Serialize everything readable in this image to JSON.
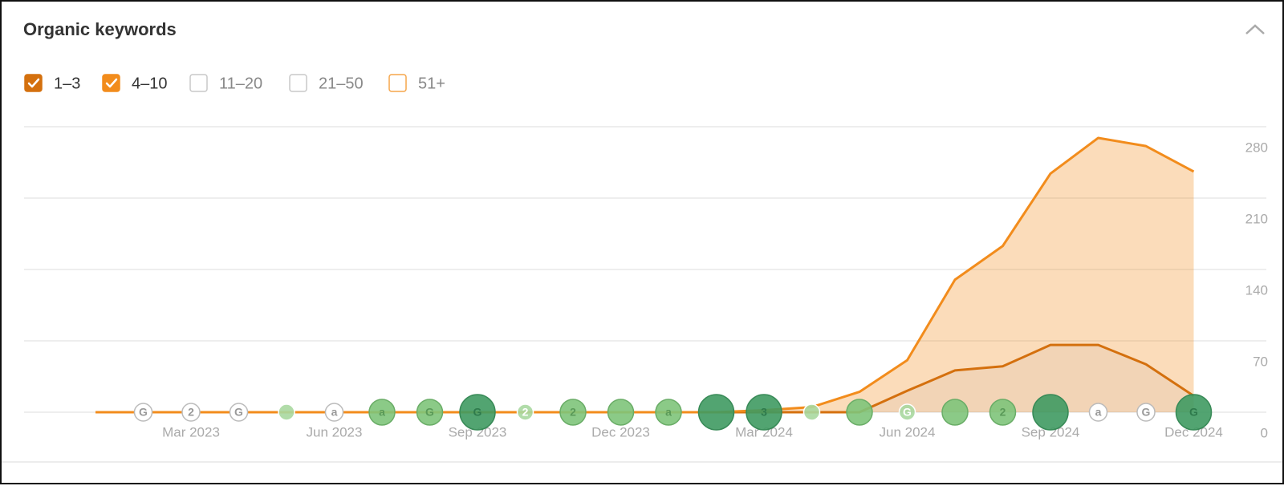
{
  "title": "Organic keywords",
  "chart_data": {
    "type": "stacked-area",
    "categories": [
      null,
      null,
      "Mar 2023",
      null,
      null,
      "Jun 2023",
      null,
      null,
      "Sep 2023",
      null,
      null,
      "Dec 2023",
      null,
      null,
      "Mar 2024",
      null,
      null,
      "Jun 2024",
      null,
      null,
      "Sep 2024",
      null,
      null,
      "Dec 2024"
    ],
    "series": [
      {
        "name": "1–3",
        "color": "#d4700e",
        "checked": true,
        "values": [
          0,
          0,
          0,
          0,
          0,
          0,
          0,
          0,
          0,
          0,
          0,
          0,
          0,
          0,
          0,
          0,
          0,
          21,
          41,
          45,
          66,
          66,
          47,
          16
        ]
      },
      {
        "name": "4–10",
        "color": "#f28c1c",
        "checked": true,
        "values": [
          0,
          0,
          0,
          0,
          0,
          0,
          0,
          0,
          0,
          0,
          0,
          0,
          0,
          0,
          2,
          5,
          20,
          30,
          89,
          118,
          168,
          203,
          214,
          220
        ]
      },
      {
        "name": "11–20",
        "color": "#c8c8c8",
        "checked": false
      },
      {
        "name": "21–50",
        "color": "#c8c8c8",
        "checked": false
      },
      {
        "name": "51+",
        "color": "#f5a54a",
        "checked": false
      }
    ],
    "markers": [
      null,
      "G",
      "2",
      "G",
      null,
      "a",
      "a",
      "G",
      "G",
      "2",
      "2",
      null,
      "a",
      null,
      "3",
      null,
      null,
      "G",
      null,
      "2",
      null,
      "a",
      "G",
      "G"
    ],
    "ylim": [
      0,
      280
    ],
    "yticks": [
      0,
      70,
      140,
      210,
      280
    ],
    "grid": true
  }
}
